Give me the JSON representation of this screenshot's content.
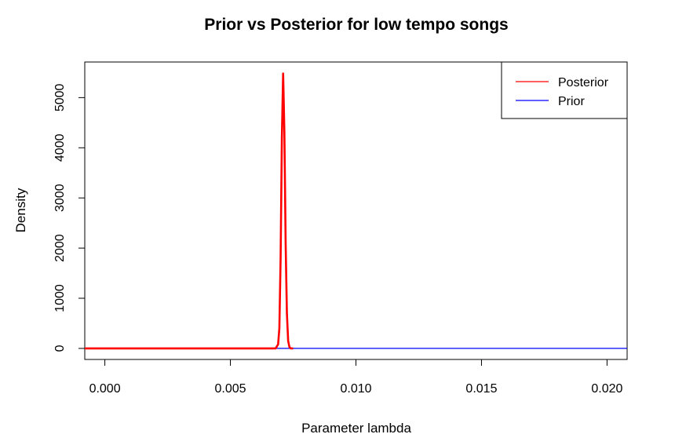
{
  "chart_data": {
    "type": "line",
    "title": "Prior vs Posterior for low tempo songs",
    "xlabel": "Parameter lambda",
    "ylabel": "Density",
    "xlim": [
      -0.0008,
      0.0208
    ],
    "ylim": [
      -220,
      5710
    ],
    "x_ticks": [
      0.0,
      0.005,
      0.01,
      0.015,
      0.02
    ],
    "x_tick_labels": [
      "0.000",
      "0.005",
      "0.010",
      "0.015",
      "0.020"
    ],
    "y_ticks": [
      0,
      1000,
      2000,
      3000,
      4000,
      5000
    ],
    "y_tick_labels": [
      "0",
      "1000",
      "2000",
      "3000",
      "4000",
      "5000"
    ],
    "grid": false,
    "legend": {
      "position": "top-right",
      "entries": [
        "Posterior",
        "Prior"
      ]
    },
    "series": [
      {
        "name": "Posterior",
        "color": "#ff0000",
        "x": [
          -0.0008,
          0.0068,
          0.0069,
          0.00695,
          0.007,
          0.00705,
          0.0071,
          0.00715,
          0.0072,
          0.00725,
          0.0073,
          0.00735,
          0.0074,
          0.0075
        ],
        "y": [
          0,
          0,
          80,
          400,
          1800,
          4200,
          5480,
          4300,
          2100,
          700,
          150,
          30,
          0,
          0
        ]
      },
      {
        "name": "Prior",
        "color": "#0000ff",
        "x": [
          -0.0008,
          0.0208
        ],
        "y": [
          1,
          1
        ]
      }
    ]
  }
}
